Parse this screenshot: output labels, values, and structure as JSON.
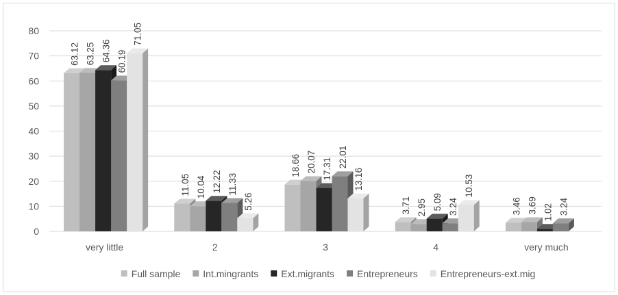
{
  "chart_data": {
    "type": "bar",
    "title": "",
    "xlabel": "",
    "ylabel": "",
    "ylim": [
      0,
      80
    ],
    "yticks": [
      0,
      10,
      20,
      30,
      40,
      50,
      60,
      70,
      80
    ],
    "grid": true,
    "legend_position": "bottom",
    "style": "3d-clustered-column",
    "categories": [
      "very little",
      "2",
      "3",
      "4",
      "very much"
    ],
    "series": [
      {
        "name": "Full sample",
        "color": "#bfbfbf",
        "values": [
          63.12,
          11.05,
          18.66,
          3.71,
          3.46
        ],
        "labels": [
          "63.12",
          "11.05",
          "18.66",
          "3.71",
          "3.46"
        ]
      },
      {
        "name": "Int.mingrants",
        "color": "#a6a6a6",
        "values": [
          63.25,
          10.04,
          20.07,
          2.95,
          3.69
        ],
        "labels": [
          "63.25",
          "10.04",
          "20.07",
          "2.95",
          "3.69"
        ]
      },
      {
        "name": "Ext.migrants",
        "color": "#262626",
        "values": [
          64.36,
          12.22,
          17.31,
          5.09,
          1.02
        ],
        "labels": [
          "64.36",
          "12.22",
          "17.31",
          "5.09",
          "1.02"
        ]
      },
      {
        "name": "Entrepreneurs",
        "color": "#7f7f7f",
        "values": [
          60.19,
          11.33,
          22.01,
          3.24,
          3.24
        ],
        "labels": [
          "60.19",
          "11.33",
          "22.01",
          "3.24",
          "3.24"
        ]
      },
      {
        "name": "Entrepreneurs-ext.mig",
        "color": "#e3e3e3",
        "values": [
          71.05,
          5.26,
          13.16,
          10.53,
          null
        ],
        "labels": [
          "71.05",
          "5.26",
          "13.16",
          "10.53",
          ""
        ]
      }
    ]
  }
}
